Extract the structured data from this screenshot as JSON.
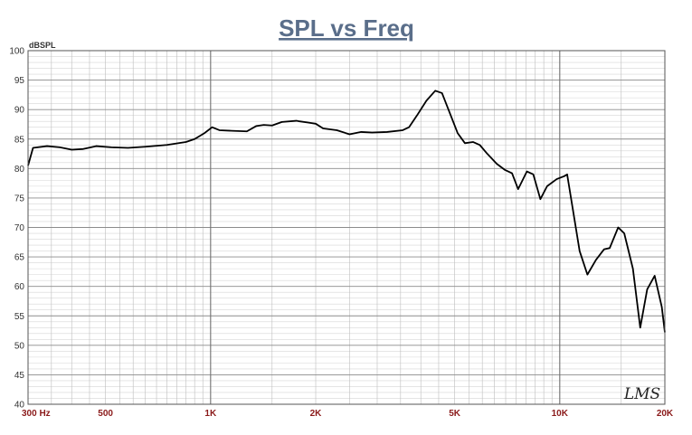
{
  "chart_data": {
    "type": "line",
    "title": "SPL vs Freq",
    "ylabel": "dBSPL",
    "xlabel": "",
    "x_scale": "log",
    "xlim": [
      300,
      20000
    ],
    "ylim": [
      40,
      100
    ],
    "grid": true,
    "y_ticks": [
      "40",
      "45",
      "50",
      "55",
      "60",
      "65",
      "70",
      "75",
      "80",
      "85",
      "90",
      "95",
      "100"
    ],
    "x_ticks": [
      {
        "value": 300,
        "label": "300  Hz"
      },
      {
        "value": 500,
        "label": "500"
      },
      {
        "value": 1000,
        "label": "1K"
      },
      {
        "value": 2000,
        "label": "2K"
      },
      {
        "value": 5000,
        "label": "5K"
      },
      {
        "value": 10000,
        "label": "10K"
      },
      {
        "value": 20000,
        "label": "20K"
      }
    ],
    "series": [
      {
        "color": "#000000",
        "points": [
          [
            300,
            80.5
          ],
          [
            310,
            83.5
          ],
          [
            340,
            83.8
          ],
          [
            370,
            83.6
          ],
          [
            400,
            83.2
          ],
          [
            430,
            83.3
          ],
          [
            470,
            83.8
          ],
          [
            520,
            83.6
          ],
          [
            580,
            83.5
          ],
          [
            650,
            83.7
          ],
          [
            750,
            84.0
          ],
          [
            850,
            84.5
          ],
          [
            900,
            85.0
          ],
          [
            960,
            86.0
          ],
          [
            1010,
            87.0
          ],
          [
            1060,
            86.5
          ],
          [
            1150,
            86.4
          ],
          [
            1270,
            86.3
          ],
          [
            1350,
            87.2
          ],
          [
            1420,
            87.4
          ],
          [
            1500,
            87.3
          ],
          [
            1600,
            87.9
          ],
          [
            1760,
            88.1
          ],
          [
            1800,
            88.0
          ],
          [
            1900,
            87.8
          ],
          [
            2000,
            87.6
          ],
          [
            2100,
            86.8
          ],
          [
            2300,
            86.5
          ],
          [
            2500,
            85.8
          ],
          [
            2700,
            86.2
          ],
          [
            2900,
            86.1
          ],
          [
            3200,
            86.2
          ],
          [
            3550,
            86.5
          ],
          [
            3700,
            87.0
          ],
          [
            3900,
            89.0
          ],
          [
            4150,
            91.5
          ],
          [
            4400,
            93.2
          ],
          [
            4600,
            92.8
          ],
          [
            4800,
            90.0
          ],
          [
            5100,
            86.0
          ],
          [
            5350,
            84.3
          ],
          [
            5650,
            84.5
          ],
          [
            5900,
            84.0
          ],
          [
            6200,
            82.5
          ],
          [
            6600,
            80.8
          ],
          [
            6950,
            79.8
          ],
          [
            7300,
            79.2
          ],
          [
            7600,
            76.5
          ],
          [
            8050,
            79.5
          ],
          [
            8400,
            79.0
          ],
          [
            8800,
            74.8
          ],
          [
            9200,
            77.0
          ],
          [
            9800,
            78.2
          ],
          [
            10300,
            78.7
          ],
          [
            10500,
            79.0
          ],
          [
            11400,
            66.0
          ],
          [
            12000,
            62.0
          ],
          [
            12700,
            64.5
          ],
          [
            13400,
            66.3
          ],
          [
            13900,
            66.5
          ],
          [
            14700,
            70.0
          ],
          [
            15300,
            69.0
          ],
          [
            16200,
            63.0
          ],
          [
            17000,
            53.0
          ],
          [
            17800,
            59.5
          ],
          [
            18700,
            61.8
          ],
          [
            19600,
            56.5
          ],
          [
            20000,
            52.2
          ]
        ]
      }
    ]
  },
  "logo": {
    "text": "LMS"
  }
}
